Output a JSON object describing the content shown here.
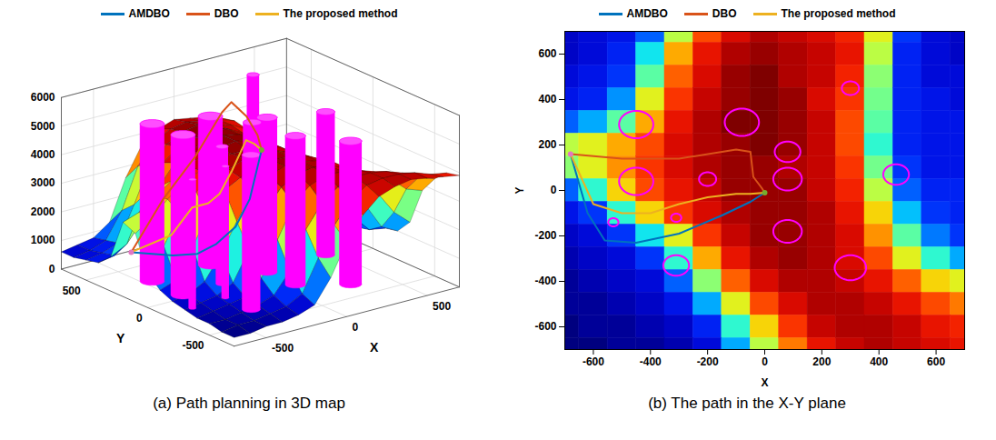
{
  "chart_data": [
    {
      "type": "surface",
      "title": "(a) Path planning in 3D map",
      "x_label": "X",
      "y_label": "Y",
      "xlim": [
        -700,
        700
      ],
      "ylim": [
        -700,
        700
      ],
      "zlim": [
        0,
        6000
      ],
      "xticks": [
        -500,
        0,
        500
      ],
      "yticks": [
        -500,
        0,
        500
      ],
      "zticks": [
        0,
        1000,
        2000,
        3000,
        4000,
        5000,
        6000
      ],
      "legend": "top",
      "terrain": {
        "x": [
          -700,
          -600,
          -500,
          -400,
          -300,
          -200,
          -100,
          0,
          100,
          200,
          300,
          400,
          500,
          600,
          700
        ],
        "y": [
          700,
          600,
          500,
          400,
          300,
          200,
          100,
          0,
          -100,
          -200,
          -300,
          -400,
          -500,
          -600,
          -700
        ],
        "z": [
          [
            600,
            700,
            800,
            1200,
            2600,
            3600,
            4000,
            4200,
            4100,
            4000,
            3800,
            2800,
            1000,
            700,
            600
          ],
          [
            600,
            700,
            900,
            1800,
            3200,
            3900,
            4200,
            4300,
            4200,
            4100,
            3900,
            2600,
            900,
            700,
            600
          ],
          [
            700,
            800,
            1000,
            2200,
            3500,
            4000,
            4300,
            4400,
            4200,
            4100,
            3800,
            2400,
            900,
            700,
            700
          ],
          [
            800,
            900,
            1400,
            2800,
            3700,
            4100,
            4300,
            4400,
            4300,
            4000,
            3700,
            2300,
            900,
            800,
            700
          ],
          [
            1200,
            1500,
            2200,
            3200,
            3900,
            4200,
            4400,
            4400,
            4300,
            4100,
            3600,
            2200,
            900,
            800,
            800
          ],
          [
            2600,
            2800,
            3200,
            3600,
            4000,
            4200,
            4300,
            4400,
            4300,
            4100,
            3600,
            2000,
            900,
            800,
            800
          ],
          [
            2400,
            2800,
            3300,
            3700,
            4000,
            4200,
            4300,
            4300,
            4200,
            4100,
            3700,
            2300,
            1000,
            800,
            800
          ],
          [
            1200,
            2000,
            3000,
            3600,
            3900,
            4100,
            4300,
            4300,
            4300,
            4100,
            3800,
            2600,
            1200,
            900,
            900
          ],
          [
            800,
            1000,
            2000,
            3000,
            3700,
            4000,
            4200,
            4300,
            4300,
            4200,
            3900,
            3000,
            1600,
            1000,
            900
          ],
          [
            600,
            700,
            1000,
            1800,
            2800,
            3700,
            4100,
            4300,
            4300,
            4200,
            4000,
            3300,
            2200,
            1300,
            1000
          ],
          [
            500,
            600,
            700,
            1000,
            2000,
            3200,
            3900,
            4200,
            4300,
            4200,
            4000,
            3600,
            2800,
            2000,
            1500
          ],
          [
            400,
            500,
            600,
            700,
            1200,
            2400,
            3500,
            4000,
            4200,
            4200,
            4100,
            3900,
            3500,
            3000,
            2800
          ],
          [
            400,
            400,
            500,
            600,
            800,
            1500,
            2800,
            3600,
            4000,
            4200,
            4200,
            4100,
            3900,
            3600,
            3400
          ],
          [
            300,
            400,
            400,
            500,
            600,
            900,
            2000,
            3000,
            3700,
            4100,
            4200,
            4200,
            4100,
            3900,
            3800
          ],
          [
            300,
            300,
            400,
            400,
            500,
            700,
            1500,
            2600,
            3400,
            3900,
            4100,
            4200,
            4100,
            4000,
            3900
          ]
        ]
      },
      "obstacles": [
        {
          "x": -450,
          "y": 290,
          "radius": 60,
          "height": 5500
        },
        {
          "x": -80,
          "y": 300,
          "radius": 60,
          "height": 5200
        },
        {
          "x": 300,
          "y": 450,
          "radius": 30,
          "height": 5800
        },
        {
          "x": 80,
          "y": 170,
          "radius": 45,
          "height": 5000
        },
        {
          "x": 80,
          "y": 50,
          "radius": 50,
          "height": 5400
        },
        {
          "x": -200,
          "y": 50,
          "radius": 30,
          "height": 4800
        },
        {
          "x": -450,
          "y": 40,
          "radius": 60,
          "height": 5600
        },
        {
          "x": 460,
          "y": 70,
          "radius": 45,
          "height": 5000
        },
        {
          "x": -530,
          "y": -140,
          "radius": 18,
          "height": 4500
        },
        {
          "x": -310,
          "y": -120,
          "radius": 18,
          "height": 4600
        },
        {
          "x": 80,
          "y": -180,
          "radius": 50,
          "height": 5200
        },
        {
          "x": -310,
          "y": -330,
          "radius": 45,
          "height": 5400
        },
        {
          "x": 300,
          "y": -340,
          "radius": 55,
          "height": 5000
        }
      ],
      "series": [
        {
          "name": "AMDBO",
          "color": "#0072BD",
          "x": [
            -680,
            -620,
            -560,
            -450,
            -300,
            -150,
            -50,
            0
          ],
          "y": [
            160,
            -100,
            -220,
            -230,
            -190,
            -110,
            -50,
            -10
          ],
          "z": [
            1600,
            1900,
            2100,
            2300,
            2600,
            3200,
            4200,
            4500
          ]
        },
        {
          "name": "DBO",
          "color": "#D95319",
          "x": [
            -680,
            -500,
            -300,
            -100,
            -50,
            -40,
            -10,
            0
          ],
          "y": [
            160,
            140,
            140,
            180,
            170,
            60,
            10,
            -10
          ],
          "z": [
            1600,
            3200,
            4400,
            5600,
            5900,
            5600,
            5000,
            4500
          ]
        },
        {
          "name": "The proposed method",
          "color": "#EDB120",
          "x": [
            -680,
            -600,
            -500,
            -400,
            -300,
            -200,
            -100,
            -50,
            0
          ],
          "y": [
            160,
            -60,
            -100,
            -100,
            -60,
            -30,
            -15,
            -15,
            -10
          ],
          "z": [
            1600,
            2500,
            3400,
            3400,
            3500,
            4100,
            5000,
            4800,
            4500
          ]
        }
      ]
    },
    {
      "type": "heatmap",
      "title": "(b) The path in the X-Y plane",
      "x_label": "X",
      "y_label": "Y",
      "xlim": [
        -700,
        700
      ],
      "ylim": [
        -700,
        700
      ],
      "xticks": [
        -600,
        -400,
        -200,
        0,
        200,
        400,
        600
      ],
      "yticks": [
        -600,
        -400,
        -200,
        0,
        200,
        400,
        600
      ],
      "legend": "top",
      "terrain": {
        "x": [
          -700,
          -600,
          -500,
          -400,
          -300,
          -200,
          -100,
          0,
          100,
          200,
          300,
          400,
          500,
          600,
          700
        ],
        "y": [
          700,
          600,
          500,
          400,
          300,
          200,
          100,
          0,
          -100,
          -200,
          -300,
          -400,
          -500,
          -600,
          -700
        ],
        "z": [
          [
            600,
            700,
            800,
            1200,
            2600,
            3600,
            4000,
            4200,
            4100,
            4000,
            3800,
            2800,
            1000,
            700,
            600
          ],
          [
            600,
            700,
            900,
            1800,
            3200,
            3900,
            4200,
            4300,
            4200,
            4100,
            3900,
            2600,
            900,
            700,
            600
          ],
          [
            700,
            800,
            1000,
            2200,
            3500,
            4000,
            4300,
            4400,
            4200,
            4100,
            3800,
            2400,
            900,
            700,
            700
          ],
          [
            800,
            900,
            1400,
            2800,
            3700,
            4100,
            4300,
            4400,
            4300,
            4000,
            3700,
            2300,
            900,
            800,
            700
          ],
          [
            1200,
            1500,
            2200,
            3200,
            3900,
            4200,
            4400,
            4400,
            4300,
            4100,
            3600,
            2200,
            900,
            800,
            800
          ],
          [
            2600,
            2800,
            3200,
            3600,
            4000,
            4200,
            4300,
            4400,
            4300,
            4100,
            3600,
            2000,
            900,
            800,
            800
          ],
          [
            2400,
            2800,
            3300,
            3700,
            4000,
            4200,
            4300,
            4300,
            4200,
            4100,
            3700,
            2300,
            1000,
            800,
            800
          ],
          [
            1200,
            2000,
            3000,
            3600,
            3900,
            4100,
            4300,
            4300,
            4300,
            4100,
            3800,
            2600,
            1200,
            900,
            900
          ],
          [
            800,
            1000,
            2000,
            3000,
            3700,
            4000,
            4200,
            4300,
            4300,
            4200,
            3900,
            3000,
            1600,
            1000,
            900
          ],
          [
            600,
            700,
            1000,
            1800,
            2800,
            3700,
            4100,
            4300,
            4300,
            4200,
            4000,
            3300,
            2200,
            1300,
            1000
          ],
          [
            500,
            600,
            700,
            1000,
            2000,
            3200,
            3900,
            4200,
            4300,
            4200,
            4000,
            3600,
            2800,
            2000,
            1500
          ],
          [
            400,
            500,
            600,
            700,
            1200,
            2400,
            3500,
            4000,
            4200,
            4200,
            4100,
            3900,
            3500,
            3000,
            2800
          ],
          [
            400,
            400,
            500,
            600,
            800,
            1500,
            2800,
            3600,
            4000,
            4200,
            4200,
            4100,
            3900,
            3600,
            3400
          ],
          [
            300,
            400,
            400,
            500,
            600,
            900,
            2000,
            3000,
            3700,
            4100,
            4200,
            4200,
            4100,
            3900,
            3800
          ],
          [
            300,
            300,
            400,
            400,
            500,
            700,
            1500,
            2600,
            3400,
            3900,
            4100,
            4200,
            4100,
            4000,
            3900
          ]
        ]
      },
      "obstacles": [
        {
          "x": -450,
          "y": 290,
          "radius": 60
        },
        {
          "x": -80,
          "y": 300,
          "radius": 60
        },
        {
          "x": 300,
          "y": 450,
          "radius": 30
        },
        {
          "x": 80,
          "y": 170,
          "radius": 45
        },
        {
          "x": 80,
          "y": 50,
          "radius": 50
        },
        {
          "x": -200,
          "y": 50,
          "radius": 30
        },
        {
          "x": -450,
          "y": 40,
          "radius": 60
        },
        {
          "x": 460,
          "y": 70,
          "radius": 45
        },
        {
          "x": -530,
          "y": -140,
          "radius": 18
        },
        {
          "x": -310,
          "y": -120,
          "radius": 18
        },
        {
          "x": 80,
          "y": -180,
          "radius": 50
        },
        {
          "x": -310,
          "y": -330,
          "radius": 45
        },
        {
          "x": 300,
          "y": -340,
          "radius": 55
        }
      ],
      "series": [
        {
          "name": "AMDBO",
          "color": "#0072BD",
          "x": [
            -680,
            -620,
            -560,
            -450,
            -300,
            -150,
            -50,
            0
          ],
          "y": [
            160,
            -100,
            -220,
            -230,
            -190,
            -110,
            -50,
            -10
          ]
        },
        {
          "name": "DBO",
          "color": "#D95319",
          "x": [
            -680,
            -500,
            -300,
            -100,
            -50,
            -40,
            -10,
            0
          ],
          "y": [
            160,
            140,
            140,
            180,
            170,
            60,
            10,
            -10
          ]
        },
        {
          "name": "The proposed method",
          "color": "#EDB120",
          "x": [
            -680,
            -600,
            -500,
            -400,
            -300,
            -200,
            -100,
            -50,
            0
          ],
          "y": [
            160,
            -60,
            -100,
            -100,
            -60,
            -30,
            -15,
            -15,
            -10
          ]
        }
      ]
    }
  ]
}
